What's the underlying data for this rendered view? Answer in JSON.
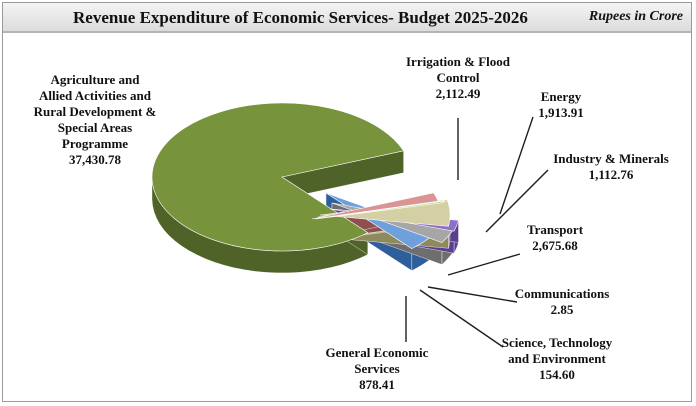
{
  "header": {
    "title": "Revenue Expenditure of Economic Services- Budget 2025-2026",
    "unit": "Rupees in Crore"
  },
  "chart_data": {
    "type": "pie",
    "style": "3d-exploded",
    "title": "Revenue Expenditure of Economic Services- Budget 2025-2026",
    "unit": "Rupees in Crore",
    "slices": [
      {
        "label": "Agriculture and Allied Activities and Rural Development & Special Areas Programme",
        "label_lines": [
          "Agriculture and",
          "Allied Activities and",
          "Rural Development &",
          "Special Areas",
          "Programme"
        ],
        "value": 37430.78,
        "value_label": "37,430.78",
        "color": "#77933c",
        "side_color": "#4f6228"
      },
      {
        "label": "Irrigation & Flood Control",
        "label_lines": [
          "Irrigation & Flood",
          "Control"
        ],
        "value": 2112.49,
        "value_label": "2,112.49",
        "color": "#6fa0dc",
        "side_color": "#2f5f9a"
      },
      {
        "label": "Energy",
        "label_lines": [
          "Energy"
        ],
        "value": 1913.91,
        "value_label": "1,913.91",
        "color": "#a6a6a6",
        "side_color": "#6e6e6e"
      },
      {
        "label": "Industry & Minerals",
        "label_lines": [
          "Industry & Minerals"
        ],
        "value": 1112.76,
        "value_label": "1,112.76",
        "color": "#8e6ec8",
        "side_color": "#5b3f8f"
      },
      {
        "label": "Transport",
        "label_lines": [
          "Transport"
        ],
        "value": 2675.68,
        "value_label": "2,675.68",
        "color": "#d4d0a4",
        "side_color": "#8f8a5e"
      },
      {
        "label": "Communications",
        "label_lines": [
          "Communications"
        ],
        "value": 2.85,
        "value_label": "2.85",
        "color": "#4bacc6",
        "side_color": "#2b6f82"
      },
      {
        "label": "Science, Technology and Environment",
        "label_lines": [
          "Science, Technology",
          "and Environment"
        ],
        "value": 154.6,
        "value_label": "154.60",
        "color": "#c4d79b",
        "side_color": "#7a8f52"
      },
      {
        "label": "General Economic Services",
        "label_lines": [
          "General Economic",
          "Services"
        ],
        "value": 878.41,
        "value_label": "878.41",
        "color": "#d99594",
        "side_color": "#8f4f4e"
      }
    ]
  }
}
